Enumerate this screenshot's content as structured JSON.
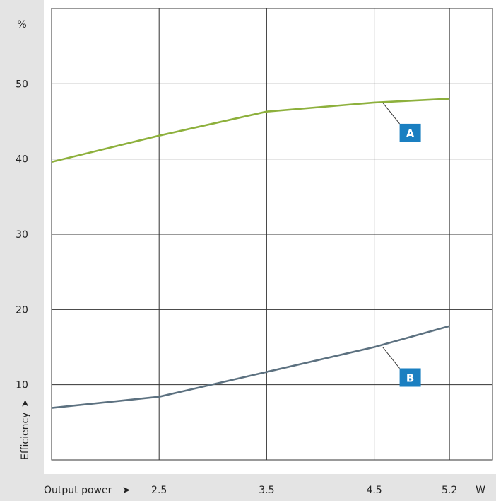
{
  "chart_data": {
    "type": "line",
    "title": "",
    "xlabel": "Output power",
    "ylabel": "Efficiency",
    "x_unit": "W",
    "y_unit": "%",
    "x_tick_labels": [
      "2.5",
      "3.5",
      "4.5",
      "5.2"
    ],
    "y_tick_labels": [
      "10",
      "20",
      "30",
      "40",
      "50"
    ],
    "xlim": [
      1.5,
      5.6
    ],
    "ylim": [
      0,
      60
    ],
    "grid": true,
    "series": [
      {
        "name": "A",
        "color": "#8db03c",
        "points": [
          [
            1.5,
            39.6
          ],
          [
            2.5,
            43.1
          ],
          [
            3.5,
            46.3
          ],
          [
            4.5,
            47.5
          ],
          [
            5.2,
            48.0
          ]
        ]
      },
      {
        "name": "B",
        "color": "#5c7180",
        "points": [
          [
            1.5,
            6.9
          ],
          [
            2.5,
            8.4
          ],
          [
            3.5,
            11.7
          ],
          [
            4.5,
            15.0
          ],
          [
            5.2,
            17.8
          ]
        ]
      }
    ],
    "callout_color": "#1a7fc1",
    "panel_color": "#e4e4e4",
    "arrow_glyph": "➤"
  }
}
